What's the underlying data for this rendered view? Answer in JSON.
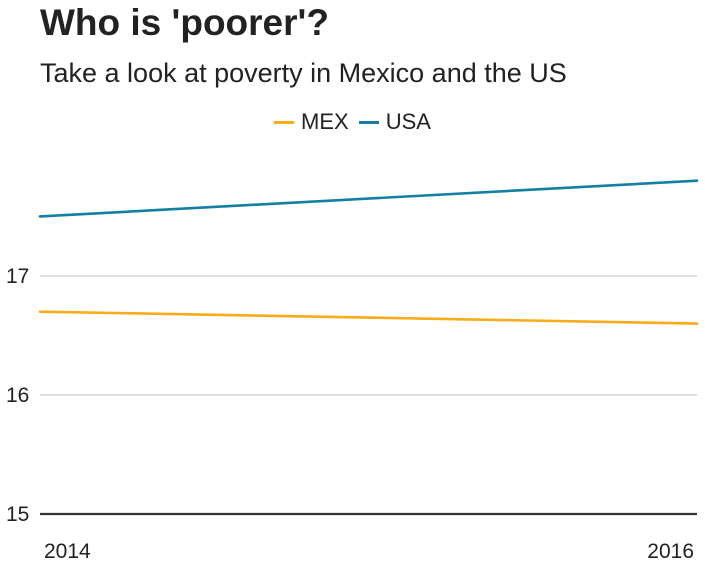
{
  "chart_data": {
    "type": "line",
    "title": "Who is 'poorer'?",
    "subtitle": "Take a look at poverty in Mexico and the US",
    "x": [
      2014,
      2016
    ],
    "x_tick_labels": [
      "2014",
      "2016"
    ],
    "y_tick_labels": [
      "15",
      "16",
      "17"
    ],
    "y_ticks": [
      15,
      16,
      17
    ],
    "ylim": [
      15,
      18.1
    ],
    "xlim": [
      2014,
      2016
    ],
    "grid": true,
    "legend_position": "top-center",
    "series": [
      {
        "name": "MEX",
        "color": "#FAAB18",
        "values": [
          16.7,
          16.6
        ]
      },
      {
        "name": "USA",
        "color": "#1380A1",
        "values": [
          17.5,
          17.8
        ]
      }
    ],
    "xlabel": "",
    "ylabel": ""
  },
  "colors": {
    "gridline": "#cbcbcb",
    "baseline": "#333333",
    "text": "#222222"
  }
}
